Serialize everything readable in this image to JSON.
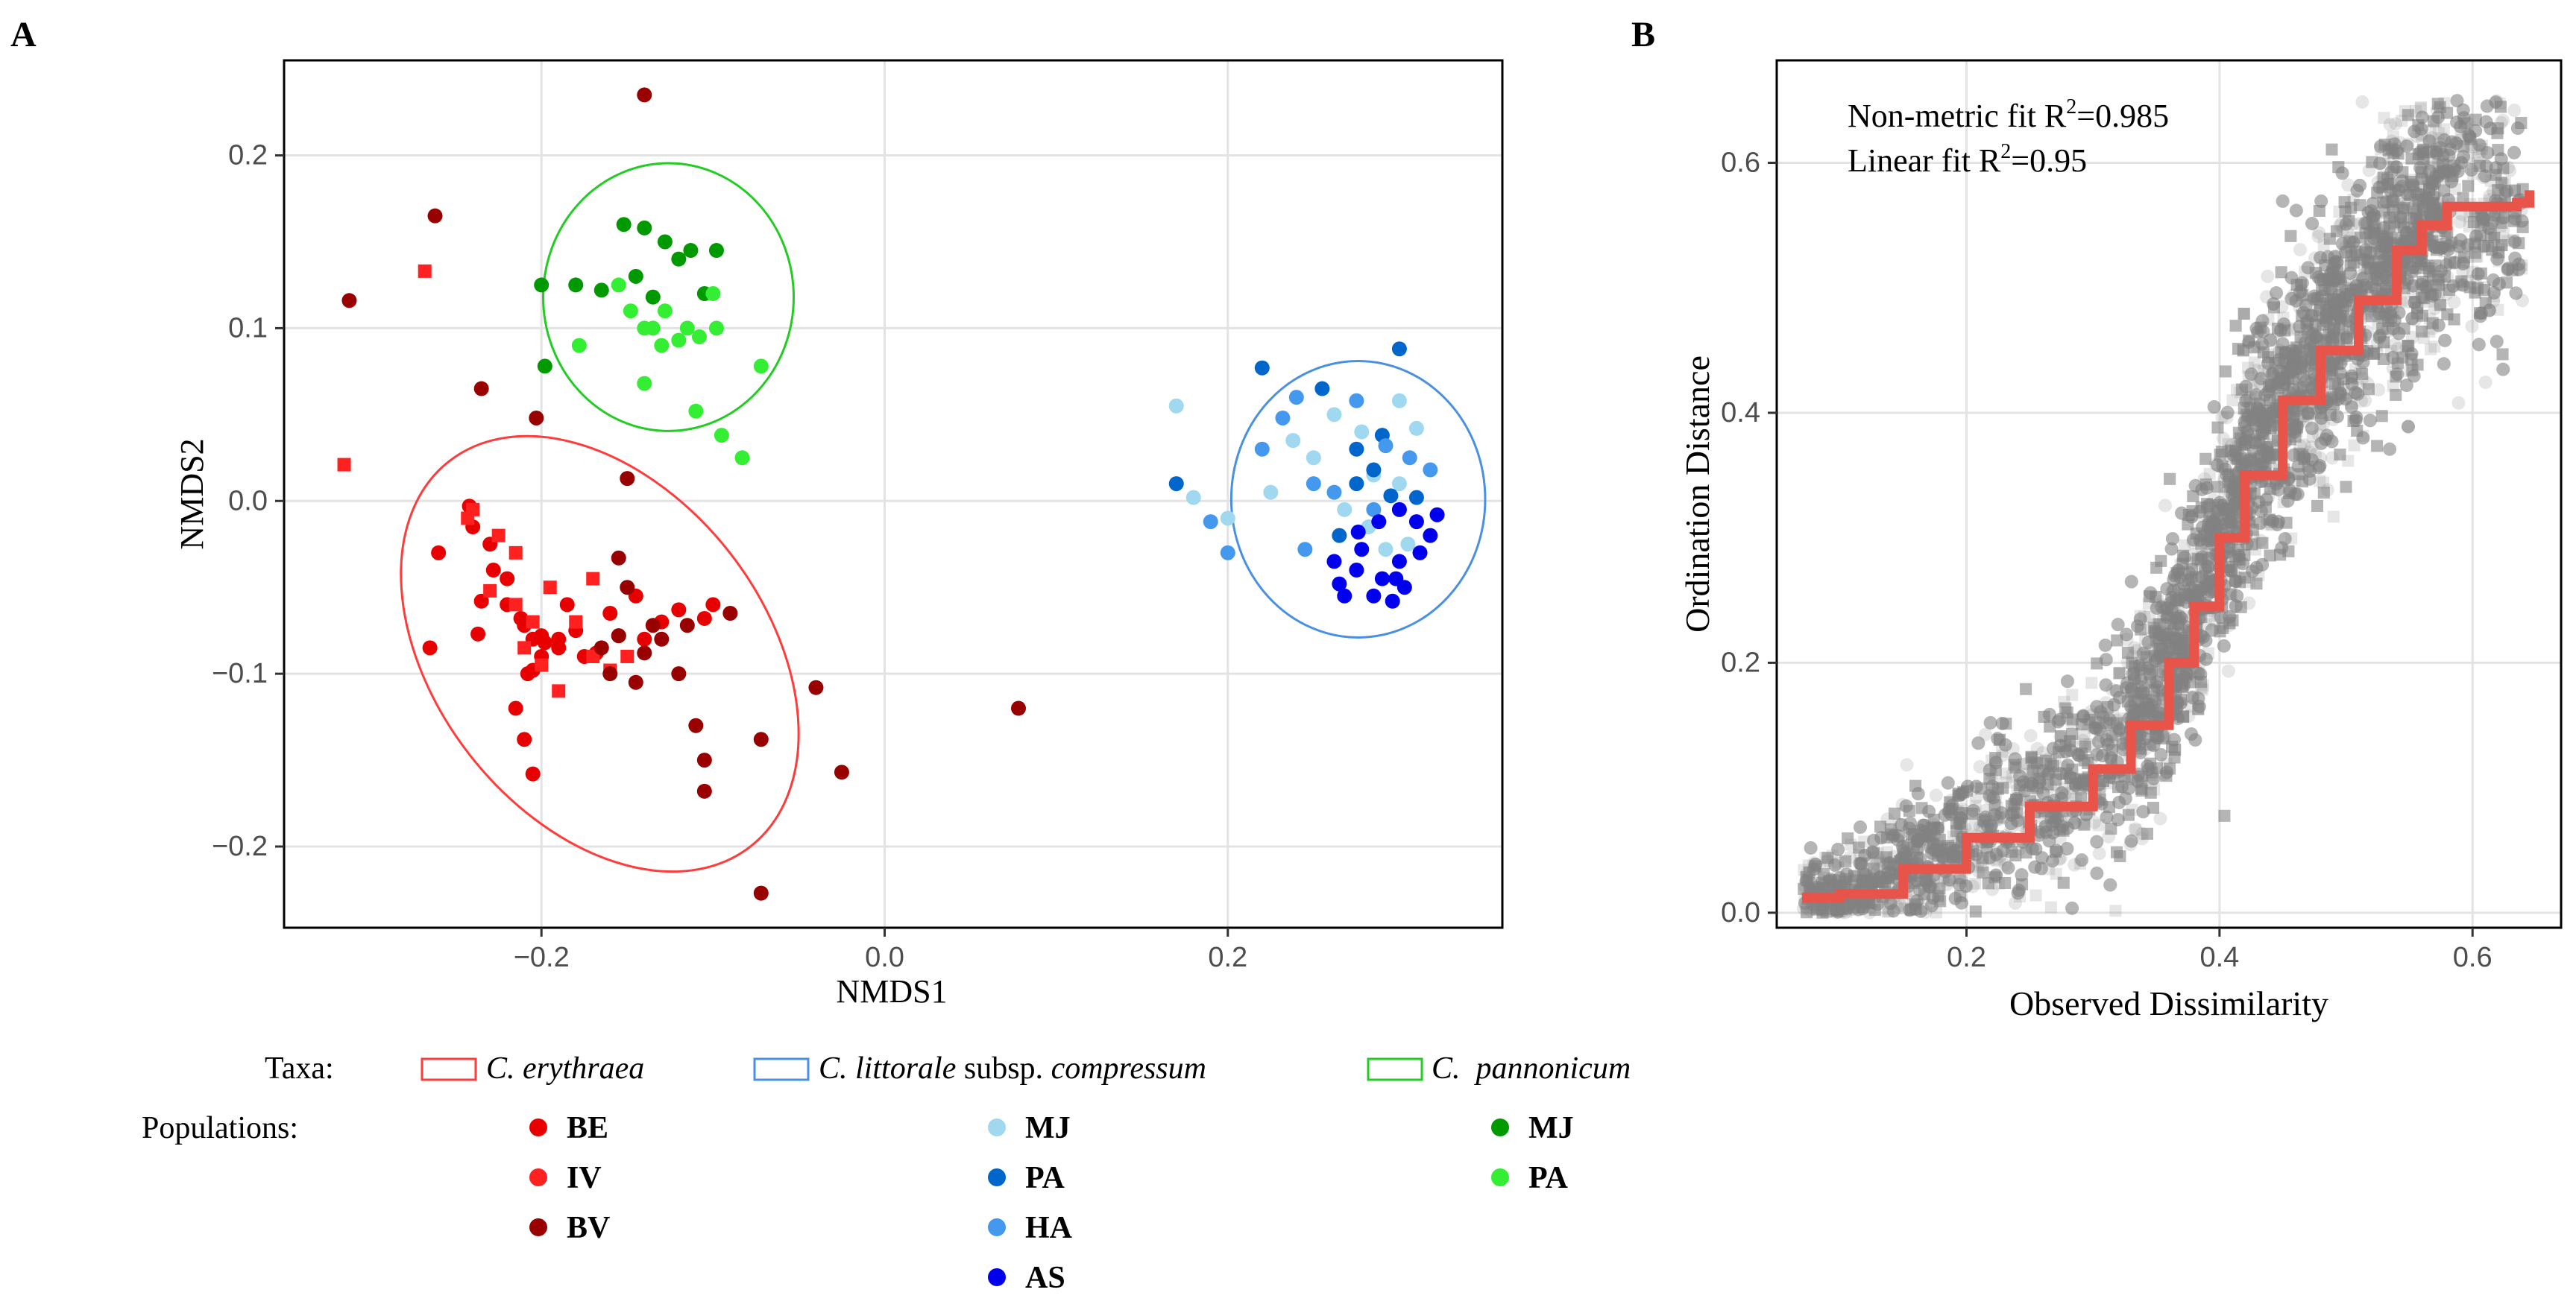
{
  "chart_data": [
    {
      "panel_label": "A",
      "type": "scatter",
      "xlabel": "NMDS1",
      "ylabel": "NMDS2",
      "xlim": [
        -0.35,
        0.36
      ],
      "ylim": [
        -0.247,
        0.255
      ],
      "xticks": [
        -0.2,
        0.0,
        0.2
      ],
      "xtick_labels": [
        "−0.2",
        "0.0",
        "0.2"
      ],
      "yticks": [
        -0.2,
        -0.1,
        0.0,
        0.1,
        0.2
      ],
      "ytick_labels": [
        "−0.2",
        "−0.1",
        "0.0",
        "0.1",
        "0.2"
      ],
      "grid": true,
      "ellipses": [
        {
          "taxon": "C. erythraea",
          "color": "#ff3b3b",
          "cx": -0.166,
          "cy": -0.0885,
          "rx": 0.096,
          "ry": 0.1415,
          "rotation_deg": -38
        },
        {
          "taxon": "C. littorale subsp. compressum",
          "color": "#4a90e2",
          "cx": 0.276,
          "cy": 0.001,
          "rx": 0.074,
          "ry": 0.08,
          "rotation_deg": 0
        },
        {
          "taxon": "C. pannonicum",
          "color": "#22cc22",
          "cx": -0.126,
          "cy": 0.118,
          "rx": 0.073,
          "ry": 0.0775,
          "rotation_deg": 0
        }
      ],
      "series": [
        {
          "name": "BE",
          "color": "#e80000",
          "shape": "circle",
          "points": [
            [
              -0.265,
              -0.085
            ],
            [
              -0.235,
              -0.058
            ],
            [
              -0.237,
              -0.077
            ],
            [
              -0.228,
              -0.04
            ],
            [
              -0.22,
              -0.06
            ],
            [
              -0.212,
              -0.068
            ],
            [
              -0.21,
              -0.072
            ],
            [
              -0.205,
              -0.08
            ],
            [
              -0.198,
              -0.082
            ],
            [
              -0.208,
              -0.1
            ],
            [
              -0.205,
              -0.098
            ],
            [
              -0.2,
              -0.09
            ],
            [
              -0.215,
              -0.12
            ],
            [
              -0.21,
              -0.138
            ],
            [
              -0.205,
              -0.158
            ],
            [
              -0.19,
              -0.08
            ],
            [
              -0.185,
              -0.06
            ],
            [
              -0.18,
              -0.075
            ],
            [
              -0.168,
              -0.088
            ],
            [
              -0.16,
              -0.065
            ],
            [
              -0.155,
              -0.078
            ],
            [
              -0.145,
              -0.055
            ],
            [
              -0.14,
              -0.08
            ],
            [
              -0.12,
              -0.063
            ],
            [
              -0.105,
              -0.068
            ],
            [
              -0.26,
              -0.03
            ],
            [
              -0.242,
              -0.003
            ],
            [
              -0.24,
              -0.015
            ],
            [
              -0.23,
              -0.025
            ],
            [
              -0.22,
              -0.045
            ],
            [
              -0.2,
              -0.078
            ],
            [
              -0.19,
              -0.085
            ],
            [
              -0.175,
              -0.09
            ],
            [
              -0.13,
              -0.07
            ],
            [
              -0.1,
              -0.06
            ]
          ]
        },
        {
          "name": "IV",
          "color": "#ff2020",
          "shape": "square",
          "points": [
            [
              -0.268,
              0.133
            ],
            [
              -0.315,
              0.021
            ],
            [
              -0.24,
              -0.005
            ],
            [
              -0.243,
              -0.01
            ],
            [
              -0.225,
              -0.02
            ],
            [
              -0.215,
              -0.03
            ],
            [
              -0.195,
              -0.05
            ],
            [
              -0.17,
              -0.045
            ],
            [
              -0.215,
              -0.06
            ],
            [
              -0.23,
              -0.052
            ],
            [
              -0.205,
              -0.07
            ],
            [
              -0.18,
              -0.07
            ],
            [
              -0.15,
              -0.09
            ],
            [
              -0.17,
              -0.09
            ],
            [
              -0.2,
              -0.095
            ],
            [
              -0.19,
              -0.11
            ],
            [
              -0.16,
              -0.098
            ],
            [
              -0.21,
              -0.085
            ]
          ]
        },
        {
          "name": "BV",
          "color": "#990000",
          "shape": "circle",
          "points": [
            [
              -0.262,
              0.165
            ],
            [
              -0.312,
              0.116
            ],
            [
              -0.235,
              0.065
            ],
            [
              -0.203,
              0.048
            ],
            [
              -0.15,
              0.013
            ],
            [
              -0.155,
              -0.033
            ],
            [
              -0.15,
              -0.05
            ],
            [
              -0.155,
              -0.078
            ],
            [
              -0.135,
              -0.072
            ],
            [
              -0.115,
              -0.072
            ],
            [
              -0.13,
              -0.08
            ],
            [
              -0.12,
              -0.1
            ],
            [
              -0.14,
              -0.088
            ],
            [
              -0.16,
              -0.1
            ],
            [
              -0.11,
              -0.13
            ],
            [
              -0.105,
              -0.15
            ],
            [
              -0.105,
              -0.168
            ],
            [
              -0.072,
              -0.138
            ],
            [
              -0.04,
              -0.108
            ],
            [
              -0.025,
              -0.157
            ],
            [
              0.078,
              -0.12
            ],
            [
              -0.072,
              -0.227
            ],
            [
              -0.14,
              0.235
            ],
            [
              -0.165,
              -0.085
            ],
            [
              -0.145,
              -0.105
            ],
            [
              -0.09,
              -0.065
            ]
          ]
        },
        {
          "name": "MJ (C. littorale)",
          "color": "#a0d8f0",
          "shape": "circle",
          "points": [
            [
              0.17,
              0.055
            ],
            [
              0.18,
              0.002
            ],
            [
              0.2,
              -0.01
            ],
            [
              0.225,
              0.005
            ],
            [
              0.238,
              0.035
            ],
            [
              0.25,
              0.025
            ],
            [
              0.262,
              0.05
            ],
            [
              0.278,
              0.04
            ],
            [
              0.3,
              0.058
            ],
            [
              0.31,
              0.042
            ],
            [
              0.268,
              -0.005
            ],
            [
              0.285,
              0.015
            ],
            [
              0.3,
              0.01
            ],
            [
              0.282,
              -0.015
            ],
            [
              0.292,
              -0.028
            ],
            [
              0.305,
              -0.025
            ]
          ]
        },
        {
          "name": "PA (C. littorale)",
          "color": "#0066cc",
          "shape": "circle",
          "points": [
            [
              0.17,
              0.01
            ],
            [
              0.22,
              0.077
            ],
            [
              0.255,
              0.065
            ],
            [
              0.3,
              0.088
            ],
            [
              0.285,
              0.018
            ],
            [
              0.275,
              0.03
            ],
            [
              0.295,
              0.003
            ],
            [
              0.31,
              0.002
            ],
            [
              0.275,
              0.01
            ],
            [
              0.265,
              -0.02
            ],
            [
              0.29,
              0.038
            ]
          ]
        },
        {
          "name": "HA",
          "color": "#4499ee",
          "shape": "circle",
          "points": [
            [
              0.19,
              -0.012
            ],
            [
              0.2,
              -0.03
            ],
            [
              0.22,
              0.03
            ],
            [
              0.232,
              0.048
            ],
            [
              0.24,
              0.06
            ],
            [
              0.25,
              0.01
            ],
            [
              0.262,
              0.005
            ],
            [
              0.275,
              0.058
            ],
            [
              0.292,
              0.032
            ],
            [
              0.306,
              0.025
            ],
            [
              0.318,
              0.018
            ],
            [
              0.245,
              -0.028
            ],
            [
              0.285,
              -0.005
            ]
          ]
        },
        {
          "name": "AS",
          "color": "#0000ee",
          "shape": "circle",
          "points": [
            [
              0.262,
              -0.035
            ],
            [
              0.275,
              -0.04
            ],
            [
              0.278,
              -0.028
            ],
            [
              0.285,
              -0.055
            ],
            [
              0.29,
              -0.045
            ],
            [
              0.298,
              -0.045
            ],
            [
              0.303,
              -0.05
            ],
            [
              0.296,
              -0.058
            ],
            [
              0.3,
              -0.005
            ],
            [
              0.31,
              -0.012
            ],
            [
              0.318,
              -0.02
            ],
            [
              0.312,
              -0.03
            ],
            [
              0.322,
              -0.008
            ],
            [
              0.268,
              -0.055
            ],
            [
              0.288,
              -0.012
            ],
            [
              0.3,
              -0.035
            ],
            [
              0.276,
              -0.018
            ],
            [
              0.265,
              -0.048
            ]
          ]
        },
        {
          "name": "MJ (C. pannonicum)",
          "color": "#009900",
          "shape": "circle",
          "points": [
            [
              -0.2,
              0.125
            ],
            [
              -0.198,
              0.078
            ],
            [
              -0.18,
              0.125
            ],
            [
              -0.165,
              0.122
            ],
            [
              -0.152,
              0.16
            ],
            [
              -0.14,
              0.158
            ],
            [
              -0.128,
              0.15
            ],
            [
              -0.12,
              0.14
            ],
            [
              -0.113,
              0.145
            ],
            [
              -0.105,
              0.12
            ],
            [
              -0.098,
              0.145
            ],
            [
              -0.145,
              0.13
            ],
            [
              -0.135,
              0.118
            ]
          ]
        },
        {
          "name": "PA (C. pannonicum)",
          "color": "#33ee33",
          "shape": "circle",
          "points": [
            [
              -0.178,
              0.09
            ],
            [
              -0.155,
              0.125
            ],
            [
              -0.148,
              0.11
            ],
            [
              -0.14,
              0.1
            ],
            [
              -0.135,
              0.1
            ],
            [
              -0.13,
              0.09
            ],
            [
              -0.128,
              0.11
            ],
            [
              -0.12,
              0.093
            ],
            [
              -0.115,
              0.1
            ],
            [
              -0.11,
              0.052
            ],
            [
              -0.1,
              0.12
            ],
            [
              -0.098,
              0.1
            ],
            [
              -0.095,
              0.038
            ],
            [
              -0.072,
              0.078
            ],
            [
              -0.083,
              0.025
            ],
            [
              -0.14,
              0.068
            ],
            [
              -0.108,
              0.095
            ]
          ]
        }
      ]
    },
    {
      "panel_label": "B",
      "type": "scatter",
      "xlabel": "Observed Dissimilarity",
      "ylabel": "Ordination Distance",
      "xlim": [
        0.05,
        0.67
      ],
      "ylim": [
        -0.012,
        0.682
      ],
      "xticks": [
        0.2,
        0.4,
        0.6
      ],
      "xtick_labels": [
        "0.2",
        "0.4",
        "0.6"
      ],
      "yticks": [
        0.0,
        0.2,
        0.4,
        0.6
      ],
      "ytick_labels": [
        "0.0",
        "0.2",
        "0.4",
        "0.6"
      ],
      "grid": true,
      "point_color": "#808080",
      "point_count": 9000,
      "annotations": {
        "line1_main": "Non-metric fit R",
        "line1_sup": "2",
        "line1_value": "=0.985",
        "line2_main": "Linear fit R",
        "line2_sup": "2",
        "line2_value": "=0.95"
      },
      "shepard_fit": {
        "color": "#e8534a",
        "x": [
          0.07,
          0.1,
          0.15,
          0.2,
          0.25,
          0.3,
          0.33,
          0.36,
          0.38,
          0.4,
          0.42,
          0.45,
          0.48,
          0.51,
          0.54,
          0.56,
          0.58,
          0.6,
          0.635,
          0.645
        ],
        "y": [
          0.012,
          0.015,
          0.035,
          0.06,
          0.085,
          0.115,
          0.15,
          0.2,
          0.245,
          0.3,
          0.35,
          0.41,
          0.45,
          0.49,
          0.53,
          0.55,
          0.565,
          0.565,
          0.568,
          0.578
        ]
      }
    }
  ],
  "legend": {
    "taxa_label": "Taxa:",
    "populations_label": "Populations:",
    "taxa": [
      {
        "italic": "C. erythraea",
        "color": "#ff3b3b"
      },
      {
        "italic": "C. littorale",
        "plain": " subsp. ",
        "italic2": "compressum",
        "color": "#4a90e2"
      },
      {
        "italic": "C.  pannonicum",
        "color": "#22cc22"
      }
    ],
    "pop_col1": [
      {
        "label": "BE",
        "color": "#e80000"
      },
      {
        "label": "IV",
        "color": "#ff2020"
      },
      {
        "label": "BV",
        "color": "#990000"
      }
    ],
    "pop_col2": [
      {
        "label": "MJ",
        "color": "#a0d8f0"
      },
      {
        "label": "PA",
        "color": "#0066cc"
      },
      {
        "label": "HA",
        "color": "#4499ee"
      },
      {
        "label": "AS",
        "color": "#0000ee"
      }
    ],
    "pop_col3": [
      {
        "label": "MJ",
        "color": "#009900"
      },
      {
        "label": "PA",
        "color": "#33ee33"
      }
    ]
  }
}
